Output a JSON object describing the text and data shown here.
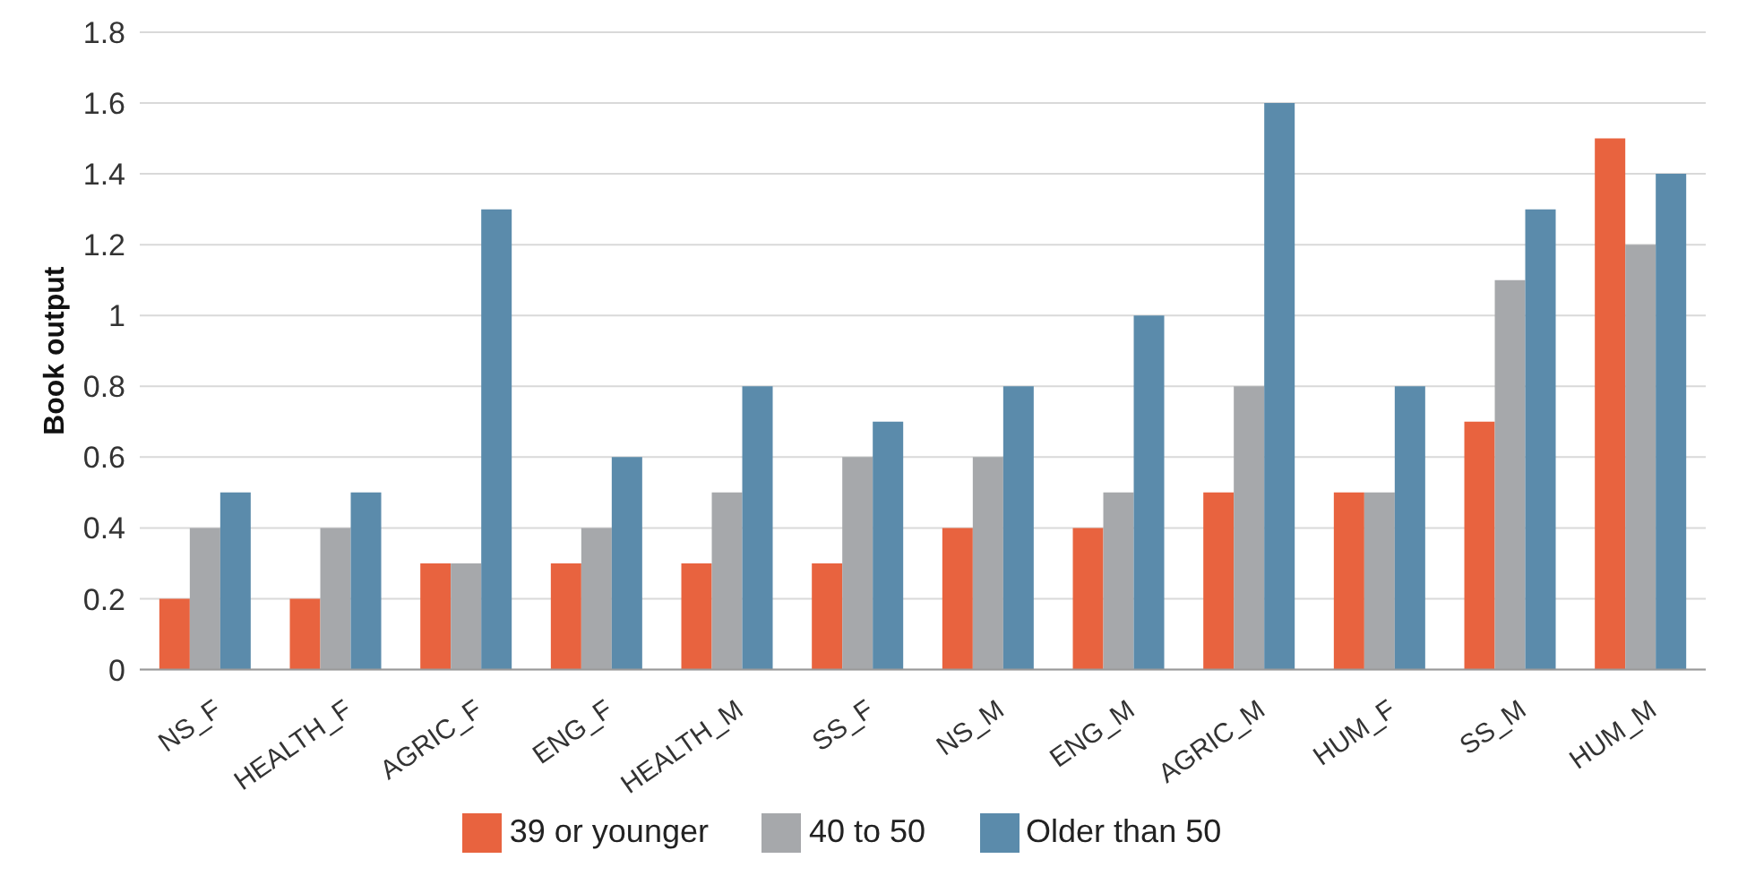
{
  "chart_data": {
    "type": "bar",
    "ylabel": "Book output",
    "categories": [
      "NS_F",
      "HEALTH_F",
      "AGRIC_F",
      "ENG_F",
      "HEALTH_M",
      "SS_F",
      "NS_M",
      "ENG_M",
      "AGRIC_M",
      "HUM_F",
      "SS_M",
      "HUM_M"
    ],
    "series": [
      {
        "name": "39 or younger",
        "color": "#e8633f",
        "values": [
          0.2,
          0.2,
          0.3,
          0.3,
          0.3,
          0.3,
          0.4,
          0.4,
          0.5,
          0.5,
          0.7,
          1.5
        ]
      },
      {
        "name": "40 to 50",
        "color": "#a6a8ab",
        "values": [
          0.4,
          0.4,
          0.3,
          0.4,
          0.5,
          0.6,
          0.6,
          0.5,
          0.8,
          0.5,
          1.1,
          1.2
        ]
      },
      {
        "name": "Older than 50",
        "color": "#5b8bab",
        "values": [
          0.5,
          0.5,
          1.3,
          0.6,
          0.8,
          0.7,
          0.8,
          1.0,
          1.6,
          0.8,
          1.3,
          1.4
        ]
      }
    ],
    "ylim": [
      0,
      1.8
    ],
    "yticks": [
      0,
      0.2,
      0.4,
      0.6,
      0.8,
      1,
      1.2,
      1.4,
      1.6,
      1.8
    ],
    "grid": "y",
    "legend": "bottom"
  }
}
